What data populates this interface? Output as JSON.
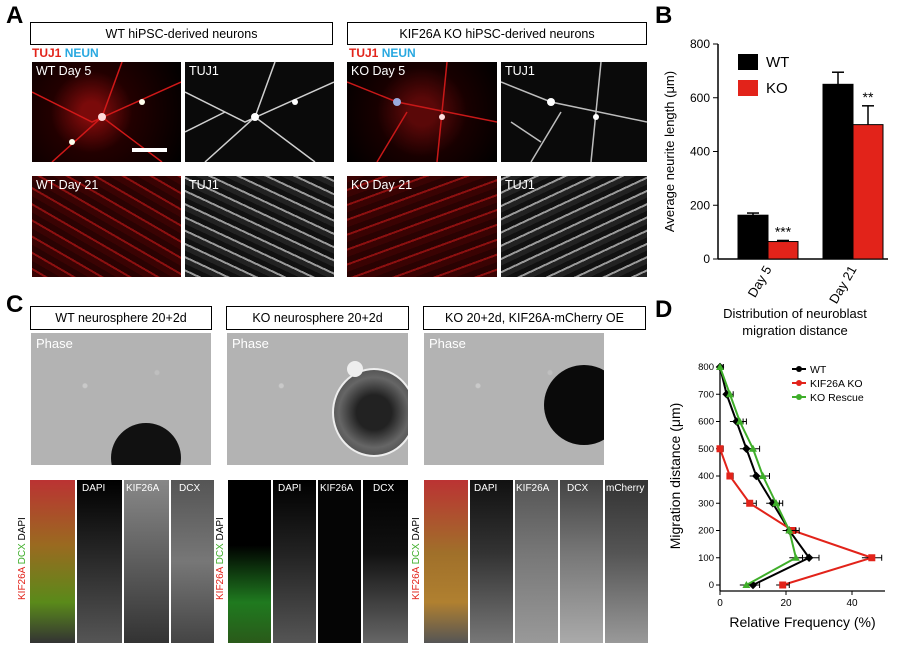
{
  "panels": {
    "A": {
      "letter": "A",
      "wt_header": "WT hiPSC-derived neurons",
      "ko_header": "KIF26A KO hiPSC-derived neurons",
      "stain_tuj1": "TUJ1",
      "stain_neun": "NEUN",
      "images": [
        {
          "label": "WT Day 5"
        },
        {
          "label": "TUJ1"
        },
        {
          "label": "KO Day 5"
        },
        {
          "label": "TUJ1"
        },
        {
          "label": "WT Day 21"
        },
        {
          "label": "TUJ1"
        },
        {
          "label": "KO Day 21"
        },
        {
          "label": "TUJ1"
        }
      ]
    },
    "B": {
      "letter": "B"
    },
    "C": {
      "letter": "C",
      "headers": [
        "WT neurosphere 20+2d",
        "KO neurosphere 20+2d",
        "KO 20+2d, KIF26A-mCherry OE"
      ],
      "phase_label": "Phase",
      "stain_kif26a": "KIF26A",
      "stain_dcx": "DCX",
      "stain_dapi": "DAPI",
      "strips_1": [
        "DAPI",
        "KIF26A",
        "DCX"
      ],
      "strips_2": [
        "DAPI",
        "KIF26A",
        "DCX"
      ],
      "strips_3": [
        "DAPI",
        "KIF26A",
        "DCX",
        "mCherry"
      ]
    },
    "D": {
      "letter": "D"
    }
  },
  "colors": {
    "wt": "#000000",
    "ko": "#e2231a",
    "rescue": "#3fae2a"
  },
  "chart_data": [
    {
      "type": "bar",
      "panel": "B",
      "categories": [
        "Day 5",
        "Day 21"
      ],
      "series": [
        {
          "name": "WT",
          "values": [
            163,
            650
          ],
          "errors": [
            8,
            45
          ]
        },
        {
          "name": "KO",
          "values": [
            65,
            500
          ],
          "errors": [
            4,
            70
          ]
        }
      ],
      "significance": [
        "***",
        "**"
      ],
      "ylabel": "Average neurite length (μm)",
      "ylim": [
        0,
        800
      ],
      "yticks": [
        0,
        200,
        400,
        600,
        800
      ],
      "legend": "top-left"
    },
    {
      "type": "line",
      "panel": "D",
      "title_lines": [
        "Distribution of neuroblast",
        "migration distance"
      ],
      "xlabel": "Relative Frequency (%)",
      "ylabel": "Migration distance (μm)",
      "xticks": [
        0,
        20,
        40
      ],
      "yticks": [
        0,
        100,
        200,
        300,
        400,
        500,
        600,
        700,
        800
      ],
      "xlim": [
        0,
        50
      ],
      "ylim": [
        0,
        800
      ],
      "legend": "top-right",
      "series": [
        {
          "name": "WT",
          "points": [
            [
              10,
              0
            ],
            [
              27,
              100
            ],
            [
              21,
              200
            ],
            [
              16,
              300
            ],
            [
              11,
              400
            ],
            [
              8,
              500
            ],
            [
              5,
              600
            ],
            [
              2,
              700
            ],
            [
              0,
              800
            ]
          ],
          "err": [
            2,
            3,
            2,
            2,
            2,
            2,
            2,
            1,
            1
          ]
        },
        {
          "name": "KIF26A KO",
          "points": [
            [
              19,
              0
            ],
            [
              46,
              100
            ],
            [
              22,
              200
            ],
            [
              9,
              300
            ],
            [
              3,
              400
            ],
            [
              0,
              500
            ]
          ],
          "err": [
            2,
            3,
            2,
            2,
            1,
            1
          ]
        },
        {
          "name": "KO Rescue",
          "points": [
            [
              8,
              0
            ],
            [
              23,
              100
            ],
            [
              21,
              200
            ],
            [
              17,
              300
            ],
            [
              13,
              400
            ],
            [
              10,
              500
            ],
            [
              6,
              600
            ],
            [
              3,
              700
            ],
            [
              0,
              800
            ]
          ],
          "err": [
            2,
            2,
            2,
            2,
            2,
            2,
            2,
            1,
            1
          ]
        }
      ]
    }
  ]
}
